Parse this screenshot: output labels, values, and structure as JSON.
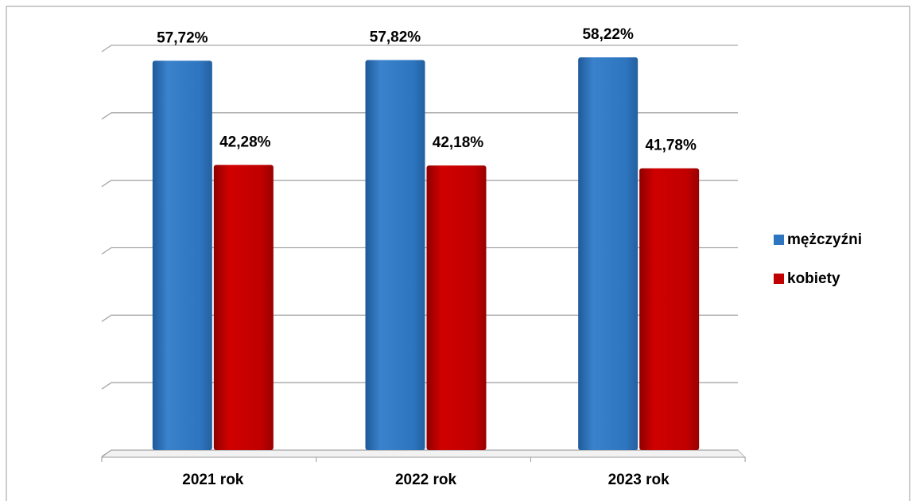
{
  "chart_data": {
    "type": "bar",
    "categories": [
      "2021 rok",
      "2022 rok",
      "2023 rok"
    ],
    "series": [
      {
        "name": "mężczyźni",
        "color": "#2e75c0",
        "values": [
          57.72,
          57.82,
          58.22
        ],
        "value_labels": [
          "57,72%",
          "57,82%",
          "58,22%"
        ]
      },
      {
        "name": "kobiety",
        "color": "#c00000",
        "values": [
          42.28,
          42.18,
          41.78
        ],
        "value_labels": [
          "42,28%",
          "42,18%",
          "41,78%"
        ]
      }
    ],
    "ylim": [
      0,
      60
    ],
    "yticks": [
      0,
      10,
      20,
      30,
      40,
      50,
      60
    ],
    "grid": true,
    "legend": "right"
  }
}
